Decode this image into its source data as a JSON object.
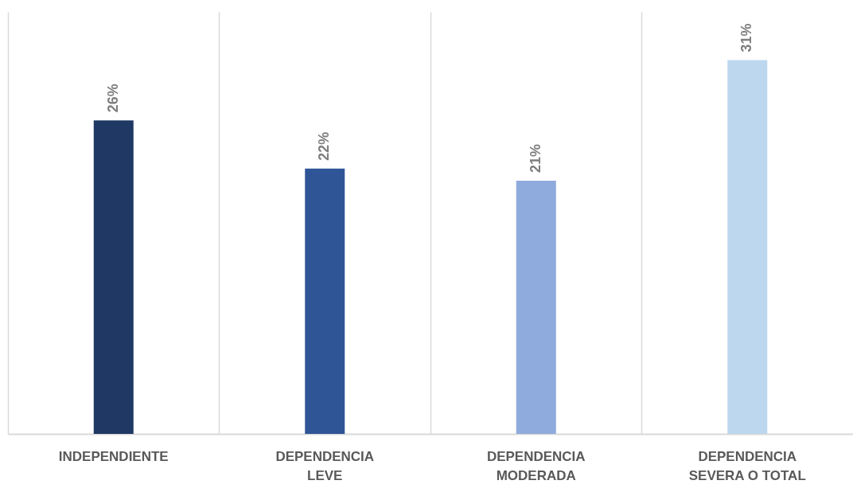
{
  "chart_data": {
    "type": "bar",
    "categories": [
      "INDEPENDIENTE",
      "DEPENDENCIA LEVE",
      "DEPENDENCIA MODERADA",
      "DEPENDENCIA SEVERA O TOTAL"
    ],
    "values": [
      26,
      22,
      21,
      31
    ],
    "colors": [
      "#1f3864",
      "#2f5597",
      "#8faadc",
      "#bdd7ee"
    ],
    "value_labels": [
      "26%",
      "22%",
      "21%",
      "31%"
    ],
    "grid": "x"
  }
}
